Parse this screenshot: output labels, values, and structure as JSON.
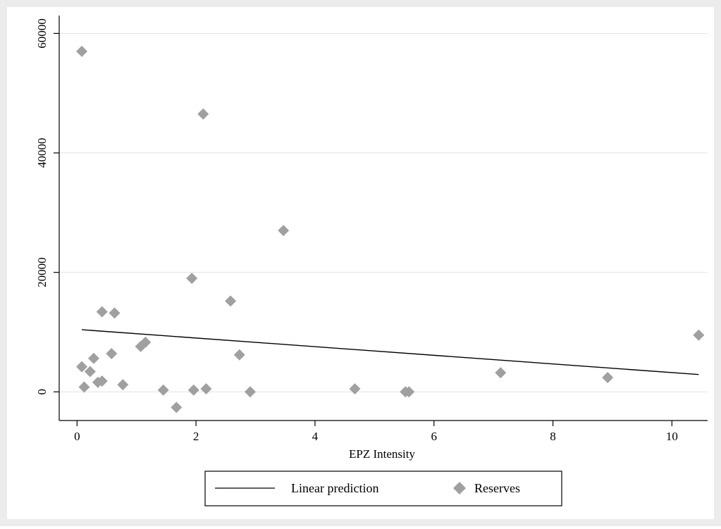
{
  "chart_data": {
    "type": "scatter",
    "title": "",
    "xlabel": "EPZ Intensity",
    "ylabel": "",
    "xlim": [
      -0.3,
      10.6
    ],
    "ylim": [
      -4800,
      63000
    ],
    "x_ticks": [
      0,
      2,
      4,
      6,
      8,
      10
    ],
    "x_tick_labels": [
      "0",
      "2",
      "4",
      "6",
      "8",
      "10"
    ],
    "y_ticks": [
      0,
      20000,
      40000,
      60000
    ],
    "y_tick_labels": [
      "0",
      "20000",
      "40000",
      "60000"
    ],
    "grid": "horizontal",
    "legend_position": "bottom",
    "legend": [
      {
        "label": "Linear prediction",
        "kind": "line"
      },
      {
        "label": "Reserves",
        "kind": "marker"
      }
    ],
    "series": [
      {
        "name": "Reserves",
        "kind": "scatter",
        "marker": "diamond",
        "color": "#a0a0a0",
        "points": [
          {
            "x": 0.08,
            "y": 57000
          },
          {
            "x": 0.08,
            "y": 4200
          },
          {
            "x": 0.12,
            "y": 800
          },
          {
            "x": 0.22,
            "y": 3400
          },
          {
            "x": 0.28,
            "y": 5600
          },
          {
            "x": 0.35,
            "y": 1600
          },
          {
            "x": 0.42,
            "y": 1800
          },
          {
            "x": 0.42,
            "y": 13400
          },
          {
            "x": 0.58,
            "y": 6400
          },
          {
            "x": 0.63,
            "y": 13200
          },
          {
            "x": 0.77,
            "y": 1200
          },
          {
            "x": 1.07,
            "y": 7600
          },
          {
            "x": 1.15,
            "y": 8300
          },
          {
            "x": 1.45,
            "y": 300
          },
          {
            "x": 1.67,
            "y": -2600
          },
          {
            "x": 1.93,
            "y": 19000
          },
          {
            "x": 1.96,
            "y": 300
          },
          {
            "x": 2.12,
            "y": 46500
          },
          {
            "x": 2.17,
            "y": 500
          },
          {
            "x": 2.58,
            "y": 15200
          },
          {
            "x": 2.73,
            "y": 6200
          },
          {
            "x": 2.91,
            "y": 0
          },
          {
            "x": 3.47,
            "y": 27000
          },
          {
            "x": 4.67,
            "y": 500
          },
          {
            "x": 5.52,
            "y": 0
          },
          {
            "x": 5.58,
            "y": 0
          },
          {
            "x": 7.12,
            "y": 3200
          },
          {
            "x": 8.92,
            "y": 2400
          },
          {
            "x": 10.45,
            "y": 9500
          }
        ]
      },
      {
        "name": "Linear prediction",
        "kind": "line",
        "color": "#000000",
        "points": [
          {
            "x": 0.08,
            "y": 10400
          },
          {
            "x": 10.45,
            "y": 2900
          }
        ]
      }
    ]
  }
}
